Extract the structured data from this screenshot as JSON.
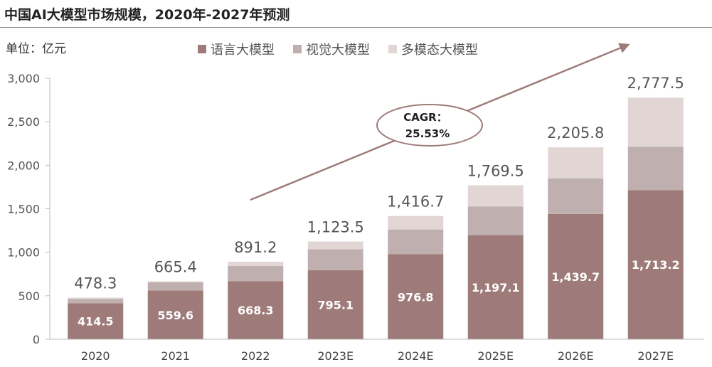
{
  "title": "中国AI大模型市场规模，2020年-2027年预测",
  "unit_label": "单位：亿元",
  "colors": {
    "language": "#9e7b79",
    "vision": "#bfb0af",
    "multimodal": "#e2d6d5",
    "arrow": "#9e7b79",
    "axis": "#bbbbbb"
  },
  "annotation": {
    "cagr_label": "CAGR：",
    "cagr_value": "25.53%"
  },
  "chart_data": {
    "type": "bar",
    "stacked": true,
    "categories": [
      "2020",
      "2021",
      "2022",
      "2023E",
      "2024E",
      "2025E",
      "2026E",
      "2027E"
    ],
    "series": [
      {
        "name": "语言大模型",
        "values": [
          414.5,
          559.6,
          668.3,
          795.1,
          976.8,
          1197.1,
          1439.7,
          1713.2
        ]
      },
      {
        "name": "视觉大模型",
        "values": [
          50,
          95,
          175,
          240,
          285,
          330,
          410,
          500
        ]
      },
      {
        "name": "多模态大模型",
        "values": [
          13.8,
          10.8,
          47.9,
          88.4,
          155,
          242.4,
          356.1,
          564.3
        ]
      }
    ],
    "totals": [
      478.3,
      665.4,
      891.2,
      1123.5,
      1416.7,
      1769.5,
      2205.8,
      2777.5
    ],
    "bottom_labels": [
      "414.5",
      "559.6",
      "668.3",
      "795.1",
      "976.8",
      "1,197.1",
      "1,439.7",
      "1,713.2"
    ],
    "total_labels": [
      "478.3",
      "665.4",
      "891.2",
      "1,123.5",
      "1,416.7",
      "1,769.5",
      "2,205.8",
      "2,777.5"
    ],
    "yticks": [
      "0",
      "500",
      "1,000",
      "1,500",
      "2,000",
      "2,500",
      "3,000"
    ],
    "ylim": [
      0,
      3000
    ],
    "legend_position": "top-center",
    "grid": false
  }
}
